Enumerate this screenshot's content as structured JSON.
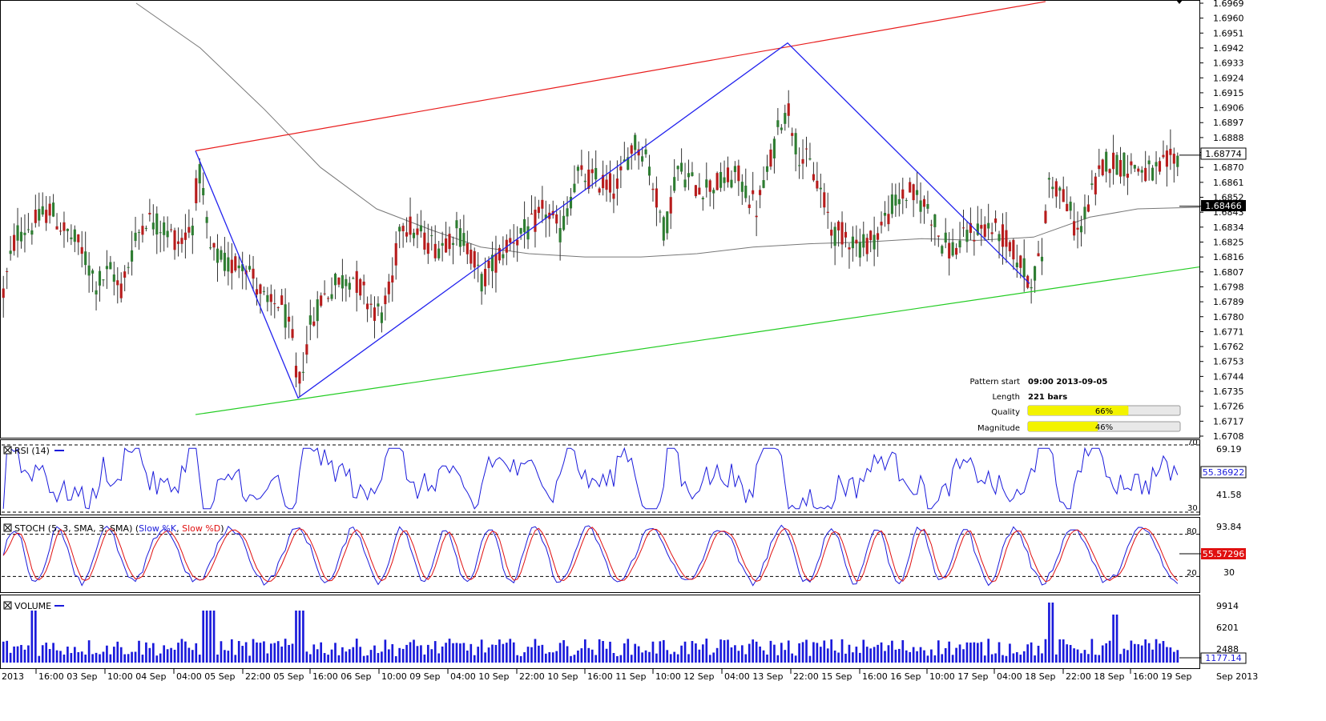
{
  "chart_data": [
    {
      "type": "candlestick",
      "y_ticks": [
        "1.6969",
        "1.6960",
        "1.6951",
        "1.6942",
        "1.6933",
        "1.6924",
        "1.6915",
        "1.6906",
        "1.6897",
        "1.6888",
        "1.6879",
        "1.6870",
        "1.6861",
        "1.6852",
        "1.6843",
        "1.6834",
        "1.6825",
        "1.6816",
        "1.6807",
        "1.6798",
        "1.6789",
        "1.6780",
        "1.6771",
        "1.6762",
        "1.6753",
        "1.6744",
        "1.6735",
        "1.6726",
        "1.6717",
        "1.6708"
      ],
      "ylim": [
        1.6708,
        1.6969
      ],
      "x_ticks": [
        "2013",
        "16:00 03 Sep",
        "10:00 04 Sep",
        "04:00 05 Sep",
        "22:00 05 Sep",
        "16:00 06 Sep",
        "10:00 09 Sep",
        "04:00 10 Sep",
        "22:00 10 Sep",
        "16:00 11 Sep",
        "10:00 12 Sep",
        "04:00 13 Sep",
        "22:00 15 Sep",
        "16:00 16 Sep",
        "10:00 17 Sep",
        "04:00 18 Sep",
        "22:00 18 Sep",
        "16:00 19 Sep",
        "Sep 2013"
      ],
      "current_price": "1.68774",
      "moving_average_value": "1.68466",
      "pattern_points": [
        1.688,
        1.6731,
        1.6945,
        1.68
      ],
      "resistance_line": [
        1.688,
        1.697
      ],
      "support_line": [
        1.6721,
        1.681
      ],
      "pattern_info": {
        "start_label": "Pattern start",
        "start_value": "09:00 2013-09-05",
        "length_label": "Length",
        "length_value": "221 bars",
        "quality_label": "Quality",
        "quality_value": "66%",
        "quality_pct": 66,
        "magnitude_label": "Magnitude",
        "magnitude_value": "46%",
        "magnitude_pct": 46
      }
    },
    {
      "type": "line",
      "title": "RSI (14)",
      "levels": [
        "70",
        "69.19",
        "41.58",
        "30"
      ],
      "current_value": "55.36922",
      "ylim": [
        30,
        70
      ]
    },
    {
      "type": "line",
      "title_prefix": "STOCH (5, 3, SMA, 3, SMA)",
      "series": [
        {
          "name": "Slow %K",
          "color": "#1a1adb"
        },
        {
          "name": "Slow %D",
          "color": "#e01010"
        }
      ],
      "levels": [
        "93.84",
        "80",
        "30",
        "20"
      ],
      "current_value": "55.57296",
      "ylim": [
        0,
        100
      ]
    },
    {
      "type": "bar",
      "title": "VOLUME",
      "levels": [
        "9914",
        "6201",
        "2488"
      ],
      "current_value": "1177.14"
    }
  ],
  "colors": {
    "up_candle": "#2e7d32",
    "down_candle": "#b71c1c",
    "pattern_line": "#2222ee",
    "resistance": "#e81c1c",
    "support": "#22cc22",
    "moving_average": "#777777",
    "quality_bar": "#f3f300"
  }
}
